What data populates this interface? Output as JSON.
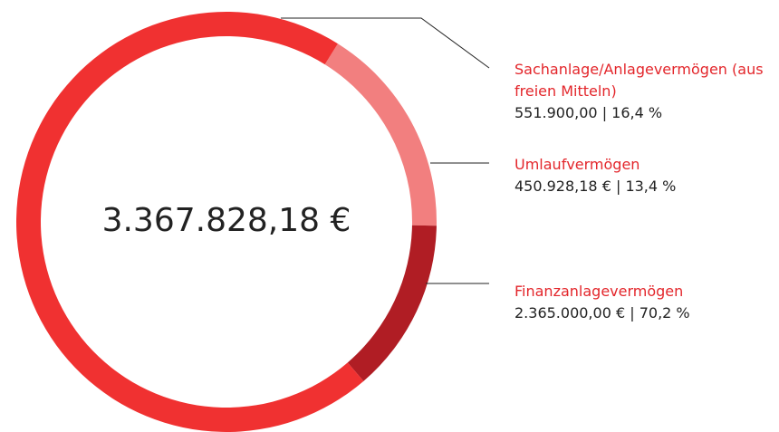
{
  "chart_data": {
    "type": "donut",
    "center_label": "3.367.828,18 €",
    "categories": [
      "Sachanlage/Anlagevermögen (aus freien Mitteln)",
      "Umlaufvermögen",
      "Finanzanlagevermögen"
    ],
    "values": [
      16.4,
      13.4,
      70.2
    ],
    "value_labels": [
      "551.900,00 | 16,4 %",
      "450.928,18 € | 13,4 %",
      "2.365.000,00 € | 70,2 %"
    ],
    "colors": [
      "#f27f7f",
      "#b01d24",
      "#f03131"
    ]
  }
}
